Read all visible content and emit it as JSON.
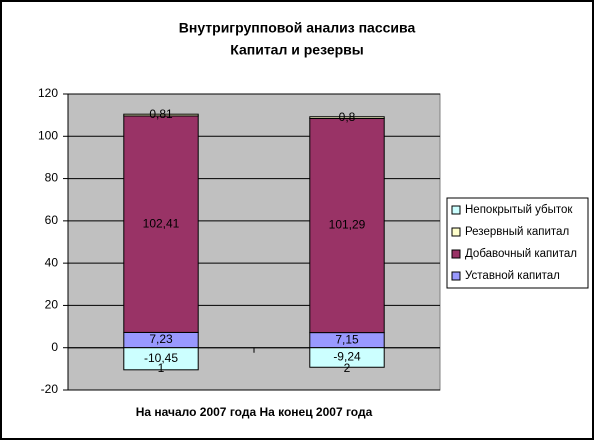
{
  "chart_data": {
    "type": "stacked-bar",
    "title": "Внутригрупповой анализ пассива",
    "subtitle": "Капитал и резервы",
    "x_label": "На начало 2007 года На конец 2007 года",
    "categories": [
      "1",
      "2"
    ],
    "series": [
      {
        "name": "Уставной капитал",
        "color": "#9999ff",
        "values": [
          7.23,
          7.15
        ],
        "value_labels": [
          "7,23",
          "7,15"
        ]
      },
      {
        "name": "Добавочный капитал",
        "color": "#993366",
        "values": [
          102.41,
          101.29
        ],
        "value_labels": [
          "102,41",
          "101,29"
        ]
      },
      {
        "name": "Резервный капитал",
        "color": "#ffffcc",
        "values": [
          0.81,
          0.8
        ],
        "value_labels": [
          "0,81",
          "0,8"
        ]
      },
      {
        "name": "Непокрытый убыток",
        "color": "#ccffff",
        "values": [
          -10.45,
          -9.24
        ],
        "value_labels": [
          "-10,45",
          "-9,24"
        ]
      }
    ],
    "ylim": [
      -20,
      120
    ],
    "yticks": [
      -20,
      0,
      20,
      40,
      60,
      80,
      100,
      120
    ],
    "grid": true,
    "legend": "right"
  }
}
